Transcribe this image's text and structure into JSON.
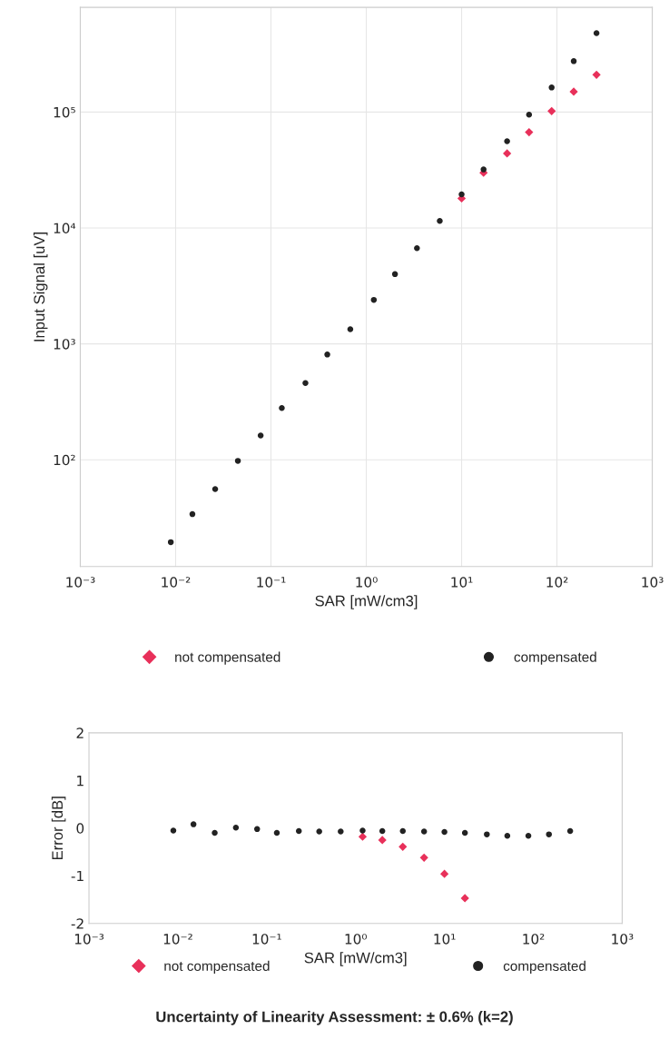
{
  "chart_data": [
    {
      "type": "scatter",
      "xlabel": "SAR [mW/cm3]",
      "ylabel": "Input Signal [uV]",
      "log": "xy",
      "x": [
        0.0089,
        0.015,
        0.026,
        0.045,
        0.078,
        0.13,
        0.23,
        0.39,
        0.68,
        1.2,
        2.0,
        3.4,
        5.9,
        10,
        17,
        30,
        51,
        88,
        150,
        260
      ],
      "series": [
        {
          "name": "not compensated",
          "color": "#e8305a",
          "marker": "diamond",
          "values": [
            null,
            null,
            null,
            null,
            null,
            null,
            null,
            null,
            null,
            null,
            null,
            null,
            null,
            18000,
            30000,
            44000,
            67000,
            102000,
            150000,
            210000
          ]
        },
        {
          "name": "compensated",
          "color": "#222222",
          "marker": "circle",
          "values": [
            19.5,
            34,
            56,
            98,
            162,
            280,
            460,
            810,
            1340,
            2400,
            4000,
            6700,
            11500,
            19500,
            32000,
            56000,
            95000,
            163000,
            275000,
            480000
          ]
        }
      ],
      "xlim": [
        0.001,
        1000
      ],
      "ylim": [
        12,
        800000
      ],
      "xticks": [
        {
          "value": 0.001,
          "label": "10⁻³"
        },
        {
          "value": 0.01,
          "label": "10⁻²"
        },
        {
          "value": 0.1,
          "label": "10⁻¹"
        },
        {
          "value": 1,
          "label": "10⁰"
        },
        {
          "value": 10,
          "label": "10¹"
        },
        {
          "value": 100,
          "label": "10²"
        },
        {
          "value": 1000,
          "label": "10³"
        }
      ],
      "yticks": [
        {
          "value": 100,
          "label": "10²"
        },
        {
          "value": 1000,
          "label": "10³"
        },
        {
          "value": 10000,
          "label": "10⁴"
        },
        {
          "value": 100000,
          "label": "10⁵"
        }
      ],
      "grid": true,
      "legend": "bottom"
    },
    {
      "type": "scatter",
      "xlabel": "SAR [mW/cm3]",
      "ylabel": "Error [dB]",
      "log": "x",
      "x": [
        0.0089,
        0.015,
        0.026,
        0.045,
        0.078,
        0.13,
        0.23,
        0.39,
        0.68,
        1.2,
        2.0,
        3.4,
        5.9,
        10,
        17,
        30,
        51,
        88,
        150,
        260
      ],
      "series": [
        {
          "name": "not compensated",
          "color": "#e8305a",
          "marker": "diamond",
          "values": [
            null,
            null,
            null,
            null,
            null,
            null,
            null,
            null,
            null,
            -0.18,
            -0.25,
            -0.39,
            -0.62,
            -0.96,
            -1.47,
            null,
            null,
            null,
            null,
            null
          ]
        },
        {
          "name": "compensated",
          "color": "#222222",
          "marker": "circle",
          "values": [
            -0.05,
            0.08,
            -0.1,
            0.01,
            -0.02,
            -0.1,
            -0.06,
            -0.07,
            -0.07,
            -0.05,
            -0.06,
            -0.06,
            -0.07,
            -0.08,
            -0.1,
            -0.13,
            -0.16,
            -0.16,
            -0.13,
            -0.06
          ]
        }
      ],
      "xlim": [
        0.001,
        1000
      ],
      "ylim": [
        -2,
        2
      ],
      "xticks": [
        {
          "value": 0.001,
          "label": "10⁻³"
        },
        {
          "value": 0.01,
          "label": "10⁻²"
        },
        {
          "value": 0.1,
          "label": "10⁻¹"
        },
        {
          "value": 1,
          "label": "10⁰"
        },
        {
          "value": 10,
          "label": "10¹"
        },
        {
          "value": 100,
          "label": "10²"
        },
        {
          "value": 1000,
          "label": "10³"
        }
      ],
      "yticks": [
        -2,
        -1,
        0,
        1,
        2
      ],
      "grid": false,
      "legend": "bottom",
      "annotations": [
        "Uncertainty of Linearity Assessment: ± 0.6% (k=2)"
      ]
    }
  ]
}
